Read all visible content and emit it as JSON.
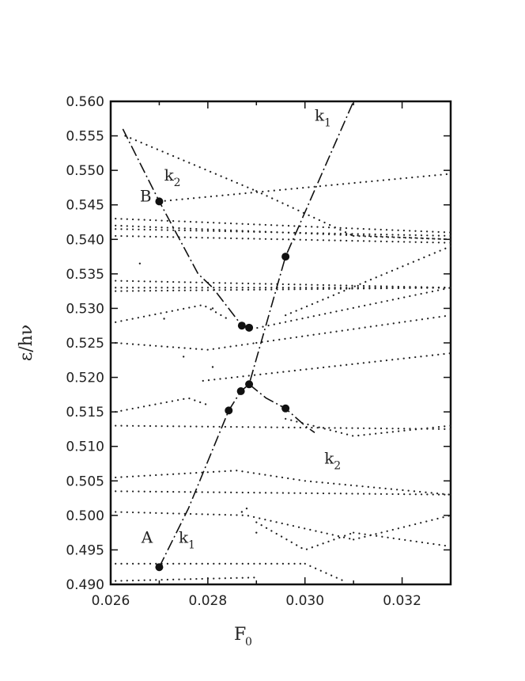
{
  "chart_data": {
    "type": "scatter",
    "title": "",
    "xlabel": "F",
    "xlabel_sub": "0",
    "ylabel": "ε/hν",
    "xlim": [
      0.026,
      0.033
    ],
    "ylim": [
      0.49,
      0.56
    ],
    "x_ticks": [
      "0.026",
      "0.028",
      "0.030",
      "0.032"
    ],
    "x_tick_values": [
      0.026,
      0.028,
      0.03,
      0.032
    ],
    "y_ticks": [
      "0.490",
      "0.495",
      "0.500",
      "0.505",
      "0.510",
      "0.515",
      "0.520",
      "0.525",
      "0.530",
      "0.535",
      "0.540",
      "0.545",
      "0.550",
      "0.555",
      "0.560"
    ],
    "y_tick_values": [
      0.49,
      0.495,
      0.5,
      0.505,
      0.51,
      0.515,
      0.52,
      0.525,
      0.53,
      0.535,
      0.54,
      0.545,
      0.55,
      0.555,
      0.56
    ],
    "grid": false,
    "dotted_levels": [
      {
        "x": [
          0.0263,
          0.029
        ],
        "y": [
          0.555,
          0.547
        ]
      },
      {
        "x": [
          0.029,
          0.031
        ],
        "y": [
          0.547,
          0.5405
        ]
      },
      {
        "x": [
          0.031,
          0.033
        ],
        "y": [
          0.5405,
          0.54
        ]
      },
      {
        "x": [
          0.027,
          0.033
        ],
        "y": [
          0.5455,
          0.5495
        ]
      },
      {
        "x": [
          0.0261,
          0.033
        ],
        "y": [
          0.543,
          0.541
        ]
      },
      {
        "x": [
          0.0261,
          0.033
        ],
        "y": [
          0.542,
          0.54
        ]
      },
      {
        "x": [
          0.0261,
          0.033
        ],
        "y": [
          0.5415,
          0.5405
        ]
      },
      {
        "x": [
          0.0261,
          0.033
        ],
        "y": [
          0.5405,
          0.5395
        ]
      },
      {
        "x": [
          0.0261,
          0.033
        ],
        "y": [
          0.534,
          0.533
        ]
      },
      {
        "x": [
          0.0261,
          0.033
        ],
        "y": [
          0.533,
          0.533
        ]
      },
      {
        "x": [
          0.0261,
          0.033
        ],
        "y": [
          0.5325,
          0.533
        ]
      },
      {
        "x": [
          0.0296,
          0.033
        ],
        "y": [
          0.529,
          0.539
        ]
      },
      {
        "x": [
          0.0261,
          0.0279,
          0.0284
        ],
        "y": [
          0.528,
          0.5305,
          0.5285
        ]
      },
      {
        "x": [
          0.0289,
          0.033
        ],
        "y": [
          0.527,
          0.533
        ]
      },
      {
        "x": [
          0.0261,
          0.028,
          0.029
        ],
        "y": [
          0.525,
          0.524,
          0.525
        ]
      },
      {
        "x": [
          0.029,
          0.033
        ],
        "y": [
          0.525,
          0.529
        ]
      },
      {
        "x": [
          0.0279,
          0.033
        ],
        "y": [
          0.5195,
          0.5235
        ]
      },
      {
        "x": [
          0.0261,
          0.0276,
          0.028
        ],
        "y": [
          0.515,
          0.517,
          0.516
        ]
      },
      {
        "x": [
          0.0261,
          0.033
        ],
        "y": [
          0.513,
          0.5125
        ]
      },
      {
        "x": [
          0.0296,
          0.031,
          0.033
        ],
        "y": [
          0.514,
          0.5115,
          0.513
        ]
      },
      {
        "x": [
          0.0261,
          0.0286,
          0.03,
          0.033
        ],
        "y": [
          0.5055,
          0.5065,
          0.505,
          0.503
        ]
      },
      {
        "x": [
          0.0261,
          0.033
        ],
        "y": [
          0.5035,
          0.503
        ]
      },
      {
        "x": [
          0.0261,
          0.0288,
          0.031
        ],
        "y": [
          0.5005,
          0.5,
          0.4965
        ]
      },
      {
        "x": [
          0.031,
          0.033
        ],
        "y": [
          0.4965,
          0.5
        ]
      },
      {
        "x": [
          0.029,
          0.03,
          0.031
        ],
        "y": [
          0.499,
          0.495,
          0.4975
        ]
      },
      {
        "x": [
          0.031,
          0.033
        ],
        "y": [
          0.4975,
          0.4955
        ]
      },
      {
        "x": [
          0.0261,
          0.029,
          0.03
        ],
        "y": [
          0.493,
          0.493,
          0.493
        ]
      },
      {
        "x": [
          0.03,
          0.0308
        ],
        "y": [
          0.493,
          0.4905
        ]
      },
      {
        "x": [
          0.0261,
          0.029
        ],
        "y": [
          0.4905,
          0.491
        ]
      }
    ],
    "stray_dots": [
      {
        "x": 0.0266,
        "y": 0.5365
      },
      {
        "x": 0.0281,
        "y": 0.53
      },
      {
        "x": 0.0271,
        "y": 0.5285
      },
      {
        "x": 0.0275,
        "y": 0.523
      },
      {
        "x": 0.0281,
        "y": 0.5215
      },
      {
        "x": 0.0287,
        "y": 0.5005
      },
      {
        "x": 0.0288,
        "y": 0.501
      },
      {
        "x": 0.029,
        "y": 0.4975
      }
    ],
    "dashdot_curves": [
      {
        "name": "k1",
        "x": [
          0.027,
          0.0276,
          0.02843,
          0.02868,
          0.02885,
          0.0296,
          0.031
        ],
        "y": [
          0.4925,
          0.501,
          0.5152,
          0.518,
          0.519,
          0.5375,
          0.56
        ]
      },
      {
        "name": "k2",
        "x": [
          0.02625,
          0.027,
          0.0278,
          0.0281,
          0.0287,
          0.02885
        ],
        "y": [
          0.556,
          0.5455,
          0.535,
          0.533,
          0.5275,
          0.5272
        ]
      },
      {
        "name": "k2",
        "x": [
          0.02885,
          0.0292,
          0.0296,
          0.03,
          0.0302
        ],
        "y": [
          0.519,
          0.517,
          0.5155,
          0.513,
          0.512
        ]
      }
    ],
    "marked_points": [
      {
        "x": 0.027,
        "y": 0.4925
      },
      {
        "x": 0.02843,
        "y": 0.5152
      },
      {
        "x": 0.02868,
        "y": 0.518
      },
      {
        "x": 0.02885,
        "y": 0.519
      },
      {
        "x": 0.0296,
        "y": 0.5155
      },
      {
        "x": 0.027,
        "y": 0.5455
      },
      {
        "x": 0.0287,
        "y": 0.5275
      },
      {
        "x": 0.02885,
        "y": 0.5272
      },
      {
        "x": 0.0296,
        "y": 0.5375
      }
    ],
    "annotations": [
      {
        "text": "k",
        "sub": "1",
        "x": 0.0302,
        "y": 0.5572
      },
      {
        "text": "k",
        "sub": "2",
        "x": 0.0271,
        "y": 0.5485
      },
      {
        "text": "B",
        "x": 0.0266,
        "y": 0.5455
      },
      {
        "text": "k",
        "sub": "2",
        "x": 0.0304,
        "y": 0.5075
      },
      {
        "text": "A",
        "x": 0.02663,
        "y": 0.496
      },
      {
        "text": "k",
        "sub": "1",
        "x": 0.0274,
        "y": 0.496
      }
    ]
  }
}
